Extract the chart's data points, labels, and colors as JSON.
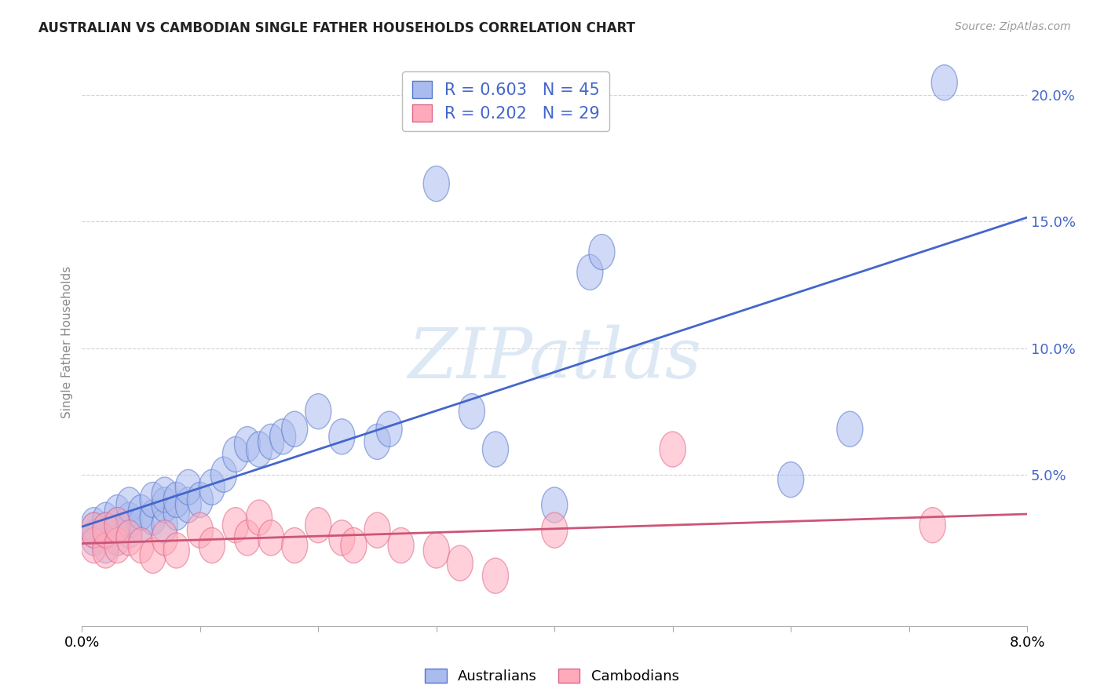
{
  "title": "AUSTRALIAN VS CAMBODIAN SINGLE FATHER HOUSEHOLDS CORRELATION CHART",
  "source": "Source: ZipAtlas.com",
  "ylabel": "Single Father Households",
  "xlim": [
    0.0,
    0.08
  ],
  "ylim": [
    -0.01,
    0.215
  ],
  "xticks": [
    0.0,
    0.01,
    0.02,
    0.03,
    0.04,
    0.05,
    0.06,
    0.07,
    0.08
  ],
  "xticklabels": [
    "0.0%",
    "",
    "",
    "",
    "",
    "",
    "",
    "",
    "8.0%"
  ],
  "yticks": [
    0.05,
    0.1,
    0.15,
    0.2
  ],
  "yticklabels": [
    "5.0%",
    "10.0%",
    "15.0%",
    "20.0%"
  ],
  "australian_fill": "#aabbee",
  "cambodian_fill": "#ffaabb",
  "australian_edge": "#5577cc",
  "cambodian_edge": "#dd6688",
  "australian_line_color": "#4466cc",
  "cambodian_line_color": "#cc5577",
  "watermark_color": "#dde8f5",
  "legend_text_color": "#4466cc",
  "australians_x": [
    0.001,
    0.001,
    0.001,
    0.002,
    0.002,
    0.002,
    0.003,
    0.003,
    0.003,
    0.004,
    0.004,
    0.004,
    0.005,
    0.005,
    0.006,
    0.006,
    0.007,
    0.007,
    0.007,
    0.008,
    0.008,
    0.009,
    0.009,
    0.01,
    0.011,
    0.012,
    0.013,
    0.014,
    0.015,
    0.016,
    0.017,
    0.018,
    0.02,
    0.022,
    0.025,
    0.026,
    0.03,
    0.033,
    0.035,
    0.04,
    0.043,
    0.044,
    0.06,
    0.065,
    0.073
  ],
  "australians_y": [
    0.025,
    0.028,
    0.03,
    0.022,
    0.028,
    0.032,
    0.025,
    0.03,
    0.035,
    0.028,
    0.032,
    0.038,
    0.03,
    0.035,
    0.033,
    0.04,
    0.03,
    0.038,
    0.042,
    0.035,
    0.04,
    0.038,
    0.045,
    0.04,
    0.045,
    0.05,
    0.058,
    0.062,
    0.06,
    0.063,
    0.065,
    0.068,
    0.075,
    0.065,
    0.063,
    0.068,
    0.165,
    0.075,
    0.06,
    0.038,
    0.13,
    0.138,
    0.048,
    0.068,
    0.205
  ],
  "cambodians_x": [
    0.001,
    0.001,
    0.002,
    0.002,
    0.003,
    0.003,
    0.004,
    0.005,
    0.006,
    0.007,
    0.008,
    0.01,
    0.011,
    0.013,
    0.014,
    0.015,
    0.016,
    0.018,
    0.02,
    0.022,
    0.023,
    0.025,
    0.027,
    0.03,
    0.032,
    0.035,
    0.04,
    0.05,
    0.072
  ],
  "cambodians_y": [
    0.022,
    0.028,
    0.02,
    0.028,
    0.022,
    0.03,
    0.025,
    0.022,
    0.018,
    0.025,
    0.02,
    0.028,
    0.022,
    0.03,
    0.025,
    0.033,
    0.025,
    0.022,
    0.03,
    0.025,
    0.022,
    0.028,
    0.022,
    0.02,
    0.015,
    0.01,
    0.028,
    0.06,
    0.03
  ],
  "background_color": "#ffffff",
  "grid_color": "#cccccc"
}
